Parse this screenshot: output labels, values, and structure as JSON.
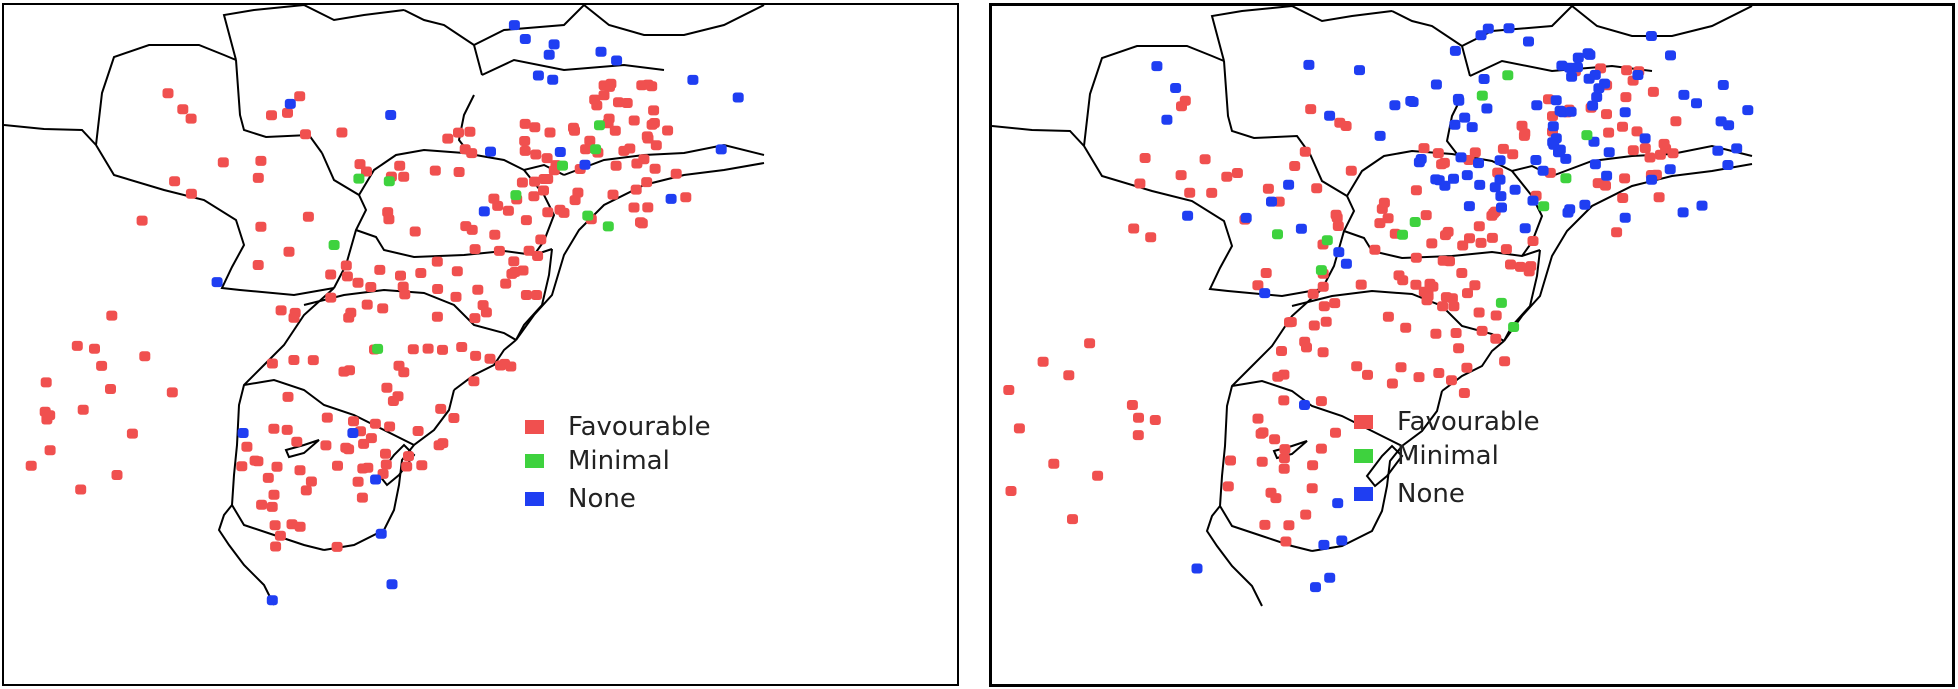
{
  "colors": {
    "favourable": "#f0504f",
    "minimal": "#3ed23e",
    "none": "#1f3ef2",
    "border": "#000000",
    "background": "#ffffff"
  },
  "legend": [
    {
      "key": "favourable",
      "label": "Favourable"
    },
    {
      "key": "minimal",
      "label": "Minimal"
    },
    {
      "key": "none",
      "label": "None"
    }
  ],
  "panels": [
    {
      "id": "left-map",
      "counts": {
        "favourable": 230,
        "minimal": 10,
        "none": 25
      }
    },
    {
      "id": "right-map",
      "counts": {
        "favourable": 190,
        "minimal": 12,
        "none": 110
      }
    }
  ]
}
